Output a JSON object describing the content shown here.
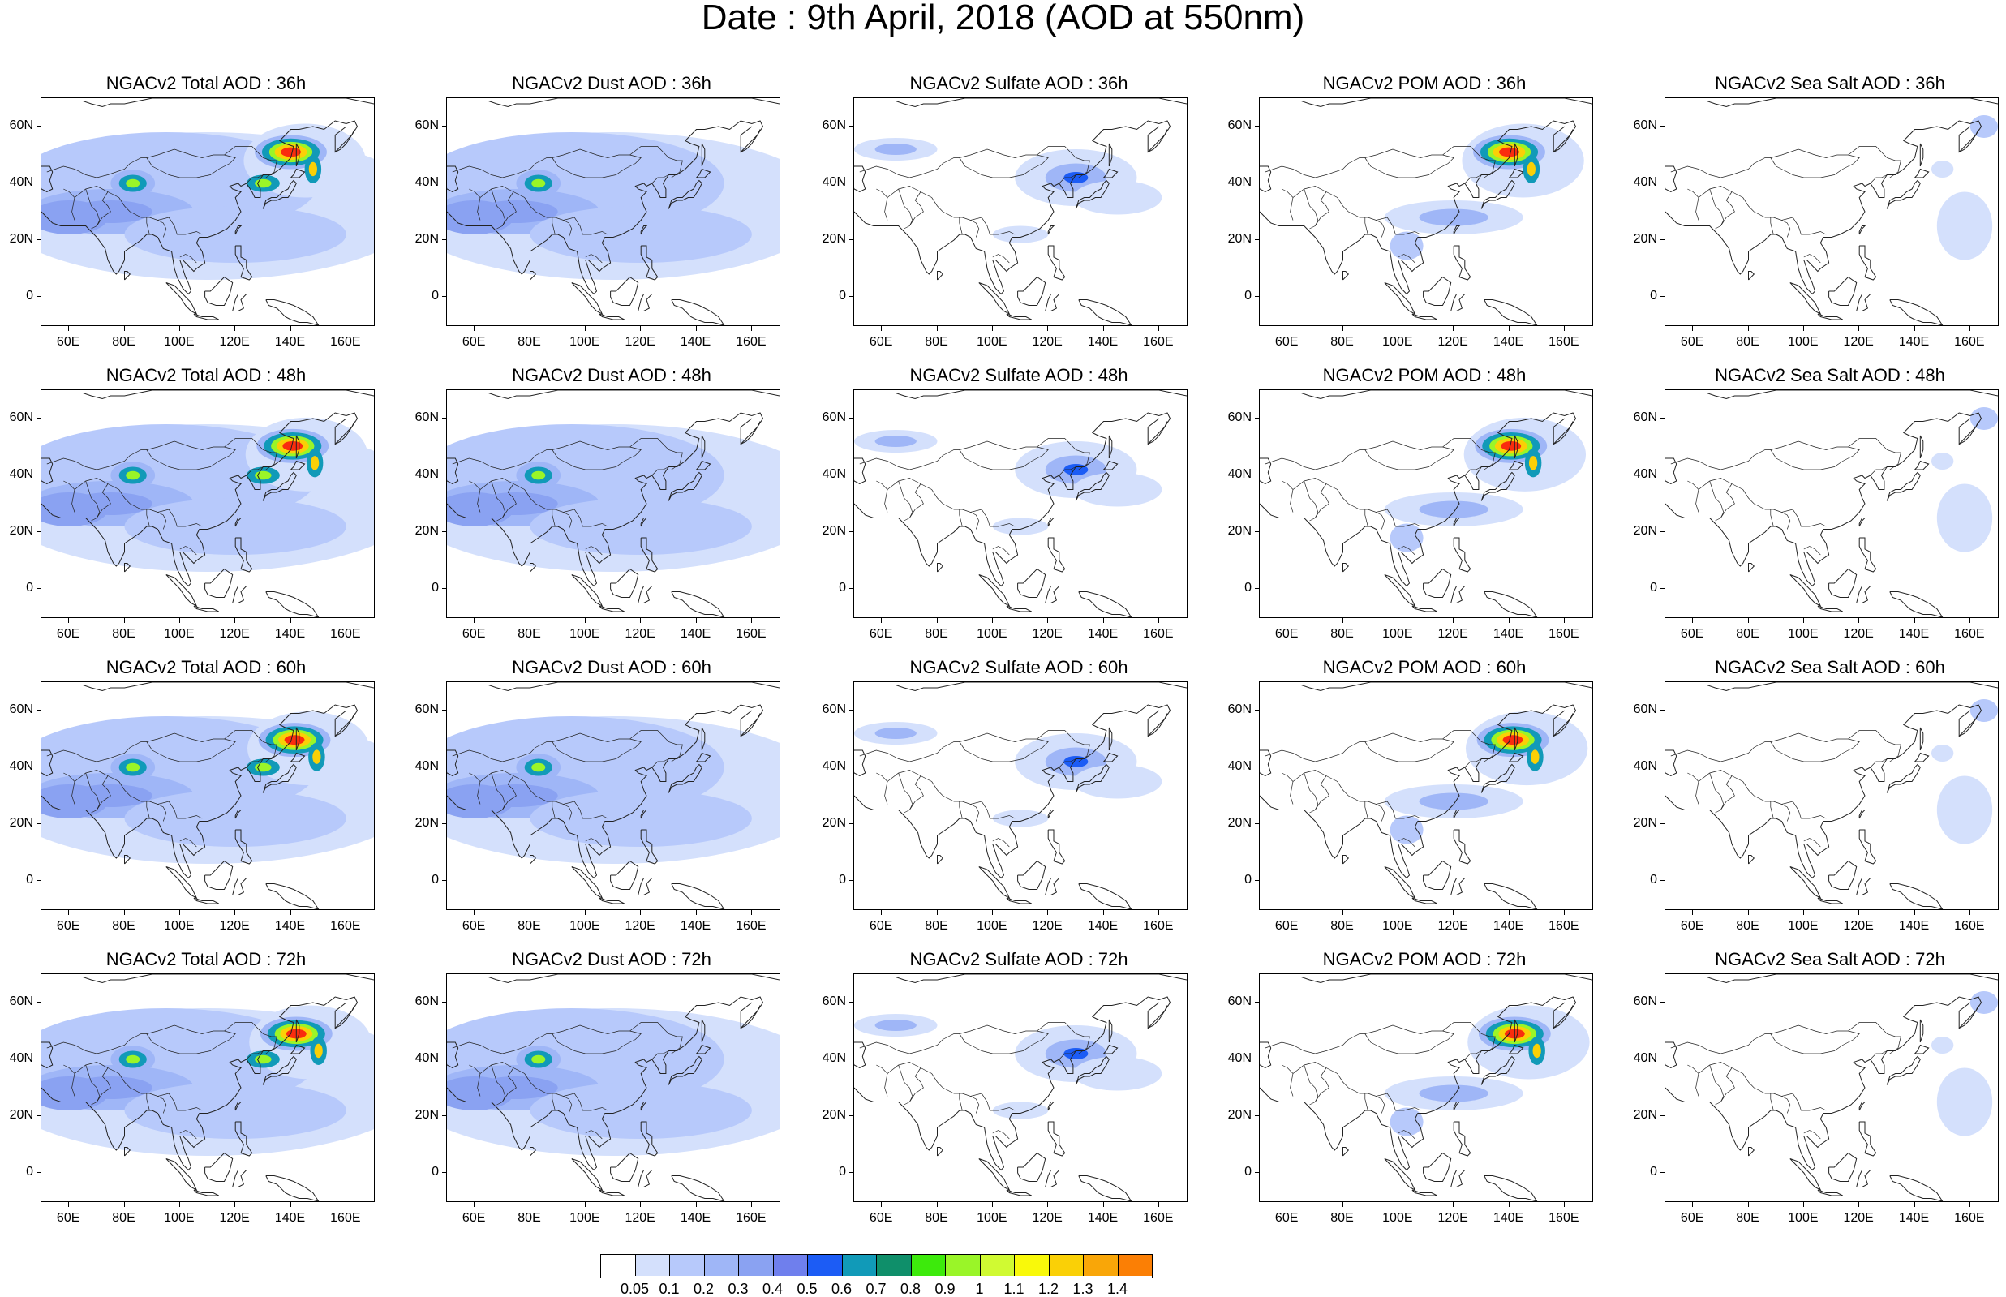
{
  "title": "Date : 9th April, 2018 (AOD at 550nm)",
  "lat_labels": [
    "60N",
    "40N",
    "20N",
    "0"
  ],
  "lon_labels": [
    "60E",
    "80E",
    "100E",
    "120E",
    "140E",
    "160E"
  ],
  "panels": [
    {
      "title": "NGACv2 Total AOD : 36h",
      "species": "total",
      "hour": 36
    },
    {
      "title": "NGACv2 Dust AOD : 36h",
      "species": "dust",
      "hour": 36
    },
    {
      "title": "NGACv2 Sulfate AOD : 36h",
      "species": "sulfate",
      "hour": 36
    },
    {
      "title": "NGACv2 POM AOD : 36h",
      "species": "pom",
      "hour": 36
    },
    {
      "title": "NGACv2 Sea Salt AOD : 36h",
      "species": "seasalt",
      "hour": 36
    },
    {
      "title": "NGACv2 Total AOD : 48h",
      "species": "total",
      "hour": 48
    },
    {
      "title": "NGACv2 Dust AOD : 48h",
      "species": "dust",
      "hour": 48
    },
    {
      "title": "NGACv2 Sulfate AOD : 48h",
      "species": "sulfate",
      "hour": 48
    },
    {
      "title": "NGACv2 POM AOD : 48h",
      "species": "pom",
      "hour": 48
    },
    {
      "title": "NGACv2 Sea Salt AOD : 48h",
      "species": "seasalt",
      "hour": 48
    },
    {
      "title": "NGACv2 Total AOD : 60h",
      "species": "total",
      "hour": 60
    },
    {
      "title": "NGACv2 Dust AOD : 60h",
      "species": "dust",
      "hour": 60
    },
    {
      "title": "NGACv2 Sulfate AOD : 60h",
      "species": "sulfate",
      "hour": 60
    },
    {
      "title": "NGACv2 POM AOD : 60h",
      "species": "pom",
      "hour": 60
    },
    {
      "title": "NGACv2 Sea Salt AOD : 60h",
      "species": "seasalt",
      "hour": 60
    },
    {
      "title": "NGACv2 Total AOD : 72h",
      "species": "total",
      "hour": 72
    },
    {
      "title": "NGACv2 Dust AOD : 72h",
      "species": "dust",
      "hour": 72
    },
    {
      "title": "NGACv2 Sulfate AOD : 72h",
      "species": "sulfate",
      "hour": 72
    },
    {
      "title": "NGACv2 POM AOD : 72h",
      "species": "pom",
      "hour": 72
    },
    {
      "title": "NGACv2 Sea Salt  AOD : 72h",
      "species": "seasalt",
      "hour": 72
    }
  ],
  "colorbar": {
    "labels": [
      "0.05",
      "0.1",
      "0.2",
      "0.3",
      "0.4",
      "0.5",
      "0.6",
      "0.7",
      "0.8",
      "0.9",
      "1",
      "1.1",
      "1.2",
      "1.3",
      "1.4"
    ],
    "colors": [
      "#ffffff",
      "#d4e0fc",
      "#b7c9fb",
      "#9fb6f7",
      "#8aa2f2",
      "#6f7fed",
      "#1c5cf5",
      "#119ab8",
      "#0f8f6a",
      "#3dea0c",
      "#9af528",
      "#d0fa32",
      "#f9f90a",
      "#fad006",
      "#f9a608",
      "#fb7f05",
      "#fa2c0e"
    ]
  }
}
